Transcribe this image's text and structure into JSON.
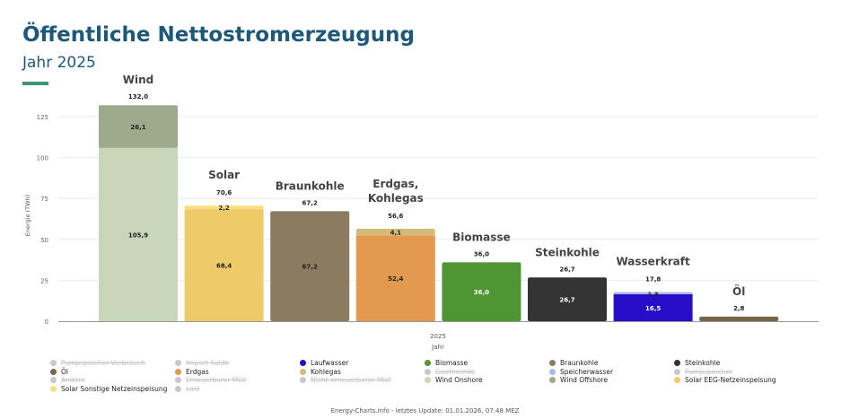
{
  "header": {
    "title": "Öffentliche Nettostromerzeugung",
    "subtitle": "Jahr 2025"
  },
  "footer": "Energy-Charts.info - letztes Update: 01.01.2026, 07:48 MEZ",
  "chart_data": {
    "type": "bar",
    "stacked": true,
    "xlabel": "Jahr",
    "x_tick": "2025",
    "ylabel": "Energie (TWh)",
    "ylim": [
      0,
      140
    ],
    "yticks": [
      0,
      25,
      50,
      75,
      100,
      125
    ],
    "grid": true,
    "categories": [
      {
        "label": "Wind",
        "total": "132,0",
        "segments": [
          {
            "series": "Wind Onshore",
            "value": 105.9,
            "label": "105,9",
            "color": "#c8d7b9"
          },
          {
            "series": "Wind Offshore",
            "value": 26.1,
            "label": "26,1",
            "color": "#9dab8c"
          }
        ]
      },
      {
        "label": "Solar",
        "total": "70,6",
        "segments": [
          {
            "series": "Solar EEG-Netzeinspeisung",
            "value": 68.4,
            "label": "68,4",
            "color": "#eecb68"
          },
          {
            "series": "Solar Sonstige Netzeinspeisung",
            "value": 2.2,
            "label": "2,2",
            "color": "#f6e07e"
          }
        ]
      },
      {
        "label": "Braunkohle",
        "total": "67,2",
        "segments": [
          {
            "series": "Braunkohle",
            "value": 67.2,
            "label": "67,2",
            "color": "#8b7b61"
          }
        ]
      },
      {
        "label": "Erdgas, Kohlegas",
        "total": "56,6",
        "segments": [
          {
            "series": "Erdgas",
            "value": 52.4,
            "label": "52,4",
            "color": "#e39950"
          },
          {
            "series": "Kohlegas",
            "value": 4.1,
            "label": "4,1",
            "color": "#d4bc78"
          }
        ]
      },
      {
        "label": "Biomasse",
        "total": "36,0",
        "segments": [
          {
            "series": "Biomasse",
            "value": 36.0,
            "label": "36,0",
            "color": "#4f9534"
          }
        ]
      },
      {
        "label": "Steinkohle",
        "total": "26,7",
        "segments": [
          {
            "series": "Steinkohle",
            "value": 26.7,
            "label": "26,7",
            "color": "#333333"
          }
        ]
      },
      {
        "label": "Wasserkraft",
        "total": "17,8",
        "segments": [
          {
            "series": "Laufwasser",
            "value": 16.5,
            "label": "16,5",
            "color": "#2a0dc8"
          },
          {
            "series": "Speicherwasser",
            "value": 1.3,
            "label": "1,3",
            "color": "#a9b8ef"
          }
        ]
      },
      {
        "label": "Öl",
        "total": "2,8",
        "segments": [
          {
            "series": "Öl",
            "value": 2.8,
            "label": "",
            "color": "#76644b"
          }
        ]
      }
    ],
    "legend": [
      {
        "name": "Pumpspeicher Verbrauch",
        "color": "#c8c8c8",
        "enabled": false
      },
      {
        "name": "Import Saldo",
        "color": "#c8c8c8",
        "enabled": false
      },
      {
        "name": "Laufwasser",
        "color": "#2a0dc8",
        "enabled": true
      },
      {
        "name": "Biomasse",
        "color": "#4f9534",
        "enabled": true
      },
      {
        "name": "Braunkohle",
        "color": "#8b7b61",
        "enabled": true
      },
      {
        "name": "Steinkohle",
        "color": "#333333",
        "enabled": true
      },
      {
        "name": "Öl",
        "color": "#76644b",
        "enabled": true
      },
      {
        "name": "Erdgas",
        "color": "#e39950",
        "enabled": true
      },
      {
        "name": "Kohlegas",
        "color": "#d4bc78",
        "enabled": true
      },
      {
        "name": "Geothermie",
        "color": "#c8c8c8",
        "enabled": false
      },
      {
        "name": "Speicherwasser",
        "color": "#a9b8ef",
        "enabled": true
      },
      {
        "name": "Pumpspeicher",
        "color": "#c8c8c8",
        "enabled": false
      },
      {
        "name": "Andere",
        "color": "#c8c8c8",
        "enabled": false
      },
      {
        "name": "Erneuerbarer Müll",
        "color": "#c8c8c8",
        "enabled": false
      },
      {
        "name": "Nicht-erneuerbarer Müll",
        "color": "#c8c8c8",
        "enabled": false
      },
      {
        "name": "Wind Onshore",
        "color": "#c8d7b9",
        "enabled": true
      },
      {
        "name": "Wind Offshore",
        "color": "#9dab8c",
        "enabled": true
      },
      {
        "name": "Solar EEG-Netzeinspeisung",
        "color": "#eecb68",
        "enabled": true
      },
      {
        "name": "Solar Sonstige Netzeinspeisung",
        "color": "#f6e07e",
        "enabled": true
      },
      {
        "name": "Last",
        "color": "#c8c8c8",
        "enabled": false
      }
    ]
  }
}
